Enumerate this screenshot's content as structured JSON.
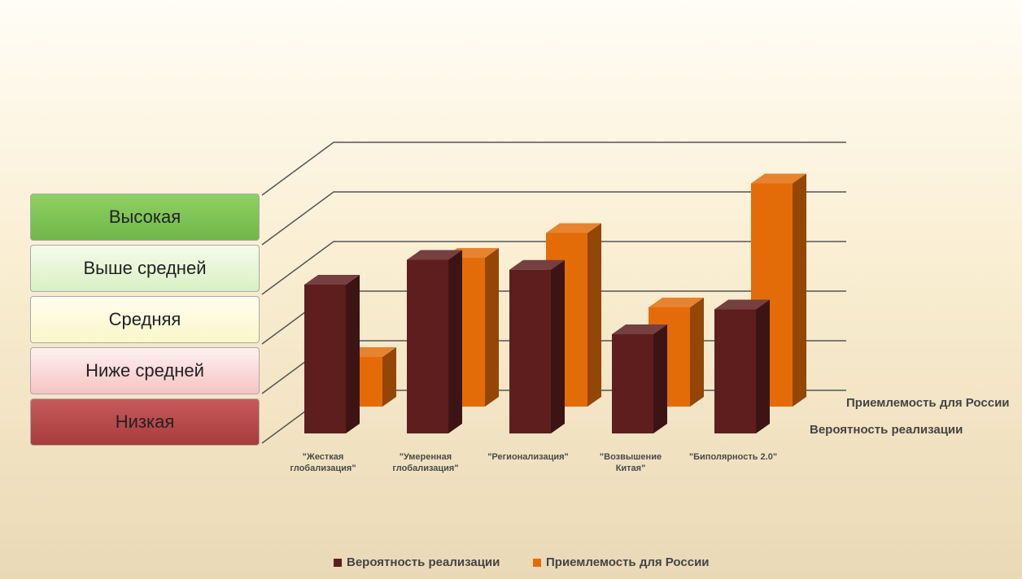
{
  "chart_data": {
    "type": "bar3d",
    "levels": [
      "Высокая",
      "Выше средней",
      "Средняя",
      "Ниже средней",
      "Низкая"
    ],
    "categories": [
      "\"Жесткая глобализация\"",
      "\"Умеренная глобализация\"",
      "\"Регионализация\"",
      "\"Возвышение Китая\"",
      "\"Биполярность 2.0\""
    ],
    "series": [
      {
        "name": "Вероятность реализации",
        "color": "#5e1e1e",
        "values": [
          3.0,
          3.5,
          3.3,
          2.0,
          2.5
        ]
      },
      {
        "name": "Приемлемость для России",
        "color": "#e36c09",
        "values": [
          1.0,
          3.0,
          3.5,
          2.0,
          4.5
        ]
      }
    ],
    "ylim": [
      0,
      5
    ],
    "yticks": [
      0,
      1,
      2,
      3,
      4,
      5
    ],
    "grid": true,
    "legend": "bottom"
  }
}
